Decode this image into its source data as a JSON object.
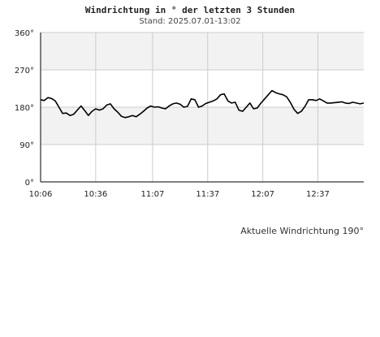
{
  "header": {
    "title": "Windrichtung in ° der letzten 3 Stunden",
    "subtitle": "Stand: 2025.07.01-13:02"
  },
  "footer": {
    "current": "Aktuelle Windrichtung 190°"
  },
  "chart_data": {
    "type": "line",
    "title": "Windrichtung in ° der letzten 3 Stunden",
    "subtitle": "Stand: 2025.07.01-13:02",
    "xlabel": "",
    "ylabel": "",
    "ylim": [
      0,
      360
    ],
    "yticks": [
      0,
      90,
      180,
      270,
      360
    ],
    "ytick_labels": [
      "0°",
      "90°",
      "180°",
      "270°",
      "360°"
    ],
    "xlim": [
      "10:06",
      "13:02"
    ],
    "xticks": [
      "10:06",
      "10:36",
      "11:07",
      "11:37",
      "12:07",
      "12:37"
    ],
    "grid": true,
    "colors": {
      "line": "#000000",
      "band": "#f2f2f2",
      "grid": "#cccccc",
      "axis": "#000000"
    },
    "series": [
      {
        "x": [
          "10:06",
          "10:08",
          "10:10",
          "10:12",
          "10:14",
          "10:16",
          "10:18",
          "10:20",
          "10:22",
          "10:24",
          "10:26",
          "10:28",
          "10:30",
          "10:32",
          "10:34",
          "10:36",
          "10:38",
          "10:40",
          "10:42",
          "10:44",
          "10:46",
          "10:48",
          "10:50",
          "10:52",
          "10:54",
          "10:56",
          "10:58",
          "11:00",
          "11:02",
          "11:04",
          "11:06",
          "11:08",
          "11:10",
          "11:12",
          "11:14",
          "11:16",
          "11:18",
          "11:20",
          "11:22",
          "11:24",
          "11:26",
          "11:28",
          "11:30",
          "11:32",
          "11:34",
          "11:36",
          "11:38",
          "11:40",
          "11:42",
          "11:44",
          "11:46",
          "11:48",
          "11:50",
          "11:52",
          "11:54",
          "11:56",
          "11:58",
          "12:00",
          "12:02",
          "12:04",
          "12:06",
          "12:08",
          "12:10",
          "12:12",
          "12:14",
          "12:16",
          "12:18",
          "12:20",
          "12:22",
          "12:24",
          "12:26",
          "12:28",
          "12:30",
          "12:32",
          "12:34",
          "12:36",
          "12:38",
          "12:40",
          "12:42",
          "12:44",
          "12:46",
          "12:48",
          "12:50",
          "12:52",
          "12:54",
          "12:56",
          "12:58",
          "13:00",
          "13:02"
        ],
        "values": [
          198,
          196,
          203,
          201,
          195,
          180,
          165,
          166,
          160,
          163,
          173,
          183,
          172,
          160,
          170,
          176,
          173,
          176,
          185,
          188,
          176,
          168,
          158,
          155,
          157,
          160,
          157,
          163,
          170,
          178,
          183,
          180,
          181,
          178,
          176,
          183,
          188,
          190,
          187,
          180,
          182,
          200,
          198,
          180,
          183,
          189,
          192,
          195,
          200,
          210,
          212,
          195,
          190,
          192,
          173,
          170,
          180,
          190,
          176,
          178,
          190,
          200,
          210,
          220,
          215,
          212,
          210,
          205,
          192,
          175,
          165,
          170,
          182,
          198,
          198,
          196,
          200,
          195,
          190,
          190,
          191,
          192,
          193,
          190,
          189,
          192,
          190,
          188,
          190
        ]
      }
    ]
  }
}
